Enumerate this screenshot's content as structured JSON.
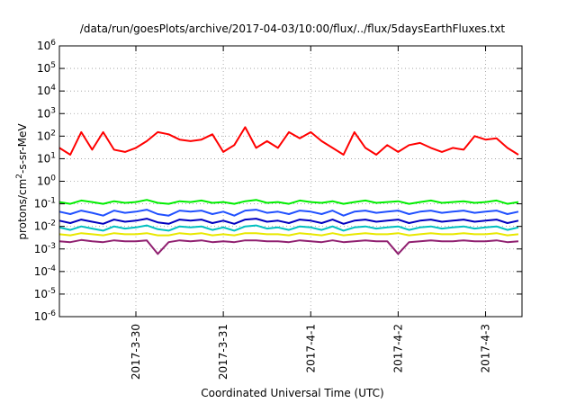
{
  "chart_data": {
    "type": "line",
    "title": "/data/run/goesPlots/archive/2017-04-03/10:00/flux/../flux/5daysEarthFluxes.txt",
    "xlabel": "Coordinated Universal Time (UTC)",
    "ylabel": {
      "pre": "protons/cm",
      "sup": "2",
      "post": "-s-sr-MeV"
    },
    "yscale": "log",
    "ylim": [
      1e-06,
      1000000.0
    ],
    "xlim": [
      "2017-03-29 03:00",
      "2017-04-03 10:00"
    ],
    "grid": true,
    "legend": "none",
    "x_ticks": [
      "2017-3-30",
      "2017-3-31",
      "2017-4-1",
      "2017-4-2",
      "2017-4-3"
    ],
    "y_ticks": [
      {
        "base": "10",
        "exp": "-6"
      },
      {
        "base": "10",
        "exp": "-5"
      },
      {
        "base": "10",
        "exp": "-4"
      },
      {
        "base": "10",
        "exp": "-3"
      },
      {
        "base": "10",
        "exp": "-2"
      },
      {
        "base": "10",
        "exp": "-1"
      },
      {
        "base": "10",
        "exp": "0"
      },
      {
        "base": "10",
        "exp": "1"
      },
      {
        "base": "10",
        "exp": "2"
      },
      {
        "base": "10",
        "exp": "3"
      },
      {
        "base": "10",
        "exp": "4"
      },
      {
        "base": "10",
        "exp": "5"
      },
      {
        "base": "10",
        "exp": "6"
      }
    ],
    "x": [
      "2017-03-29 03:00",
      "2017-03-29 06:00",
      "2017-03-29 09:00",
      "2017-03-29 12:00",
      "2017-03-29 15:00",
      "2017-03-29 18:00",
      "2017-03-29 21:00",
      "2017-03-30 00:00",
      "2017-03-30 03:00",
      "2017-03-30 06:00",
      "2017-03-30 09:00",
      "2017-03-30 12:00",
      "2017-03-30 15:00",
      "2017-03-30 18:00",
      "2017-03-30 21:00",
      "2017-03-31 00:00",
      "2017-03-31 03:00",
      "2017-03-31 06:00",
      "2017-03-31 09:00",
      "2017-03-31 12:00",
      "2017-03-31 15:00",
      "2017-03-31 18:00",
      "2017-03-31 21:00",
      "2017-04-01 00:00",
      "2017-04-01 03:00",
      "2017-04-01 06:00",
      "2017-04-01 09:00",
      "2017-04-01 12:00",
      "2017-04-01 15:00",
      "2017-04-01 18:00",
      "2017-04-01 21:00",
      "2017-04-02 00:00",
      "2017-04-02 03:00",
      "2017-04-02 06:00",
      "2017-04-02 09:00",
      "2017-04-02 12:00",
      "2017-04-02 15:00",
      "2017-04-02 18:00",
      "2017-04-02 21:00",
      "2017-04-03 00:00",
      "2017-04-03 03:00",
      "2017-04-03 06:00",
      "2017-04-03 09:00"
    ],
    "series": [
      {
        "color": "#ff0000",
        "values": [
          30,
          15,
          150,
          25,
          150,
          25,
          20,
          30,
          60,
          150,
          120,
          70,
          60,
          70,
          120,
          20,
          40,
          250,
          30,
          60,
          30,
          150,
          80,
          150,
          60,
          30,
          15,
          150,
          30,
          15,
          40,
          20,
          40,
          50,
          30,
          20,
          30,
          25,
          100,
          70,
          80,
          30,
          15
        ]
      },
      {
        "color": "#00ee00",
        "values": [
          0.12,
          0.1,
          0.14,
          0.12,
          0.1,
          0.13,
          0.11,
          0.12,
          0.15,
          0.11,
          0.1,
          0.13,
          0.12,
          0.14,
          0.11,
          0.12,
          0.1,
          0.13,
          0.15,
          0.11,
          0.12,
          0.1,
          0.14,
          0.12,
          0.11,
          0.13,
          0.1,
          0.12,
          0.14,
          0.11,
          0.12,
          0.13,
          0.1,
          0.12,
          0.14,
          0.11,
          0.12,
          0.13,
          0.11,
          0.12,
          0.14,
          0.1,
          0.12
        ]
      },
      {
        "color": "#2050ff",
        "values": [
          0.045,
          0.035,
          0.05,
          0.04,
          0.03,
          0.05,
          0.04,
          0.045,
          0.055,
          0.035,
          0.03,
          0.05,
          0.045,
          0.05,
          0.035,
          0.045,
          0.03,
          0.05,
          0.055,
          0.04,
          0.045,
          0.035,
          0.05,
          0.045,
          0.035,
          0.05,
          0.03,
          0.045,
          0.05,
          0.04,
          0.045,
          0.05,
          0.035,
          0.045,
          0.05,
          0.04,
          0.045,
          0.05,
          0.04,
          0.045,
          0.05,
          0.035,
          0.045
        ]
      },
      {
        "color": "#0000c0",
        "values": [
          0.018,
          0.014,
          0.02,
          0.016,
          0.013,
          0.02,
          0.016,
          0.018,
          0.022,
          0.015,
          0.013,
          0.02,
          0.018,
          0.02,
          0.014,
          0.018,
          0.013,
          0.02,
          0.022,
          0.016,
          0.018,
          0.014,
          0.02,
          0.018,
          0.014,
          0.02,
          0.013,
          0.018,
          0.02,
          0.016,
          0.018,
          0.02,
          0.014,
          0.018,
          0.02,
          0.016,
          0.018,
          0.02,
          0.016,
          0.018,
          0.02,
          0.014,
          0.018
        ]
      },
      {
        "color": "#00c0c0",
        "values": [
          0.009,
          0.007,
          0.01,
          0.008,
          0.0065,
          0.01,
          0.008,
          0.009,
          0.011,
          0.0075,
          0.0065,
          0.01,
          0.009,
          0.01,
          0.007,
          0.009,
          0.0065,
          0.01,
          0.011,
          0.008,
          0.009,
          0.007,
          0.01,
          0.009,
          0.007,
          0.01,
          0.0065,
          0.009,
          0.01,
          0.008,
          0.009,
          0.01,
          0.007,
          0.009,
          0.01,
          0.008,
          0.009,
          0.01,
          0.008,
          0.009,
          0.01,
          0.007,
          0.009
        ]
      },
      {
        "color": "#e8e800",
        "values": [
          0.0045,
          0.004,
          0.005,
          0.0045,
          0.004,
          0.005,
          0.0045,
          0.0045,
          0.005,
          0.004,
          0.004,
          0.005,
          0.0045,
          0.005,
          0.004,
          0.0045,
          0.004,
          0.005,
          0.005,
          0.0045,
          0.0045,
          0.004,
          0.005,
          0.0045,
          0.004,
          0.005,
          0.004,
          0.0045,
          0.005,
          0.0045,
          0.0045,
          0.005,
          0.004,
          0.0045,
          0.005,
          0.0045,
          0.0045,
          0.005,
          0.0045,
          0.0045,
          0.005,
          0.004,
          0.0045
        ]
      },
      {
        "color": "#902070",
        "values": [
          0.0022,
          0.002,
          0.0025,
          0.0022,
          0.002,
          0.0024,
          0.0022,
          0.0022,
          0.0024,
          0.0006,
          0.002,
          0.0024,
          0.0022,
          0.0024,
          0.002,
          0.0022,
          0.002,
          0.0024,
          0.0024,
          0.0022,
          0.0022,
          0.002,
          0.0024,
          0.0022,
          0.002,
          0.0024,
          0.002,
          0.0022,
          0.0024,
          0.0022,
          0.0022,
          0.0006,
          0.002,
          0.0022,
          0.0024,
          0.0022,
          0.0022,
          0.0024,
          0.0022,
          0.0022,
          0.0024,
          0.002,
          0.0022
        ]
      }
    ]
  }
}
